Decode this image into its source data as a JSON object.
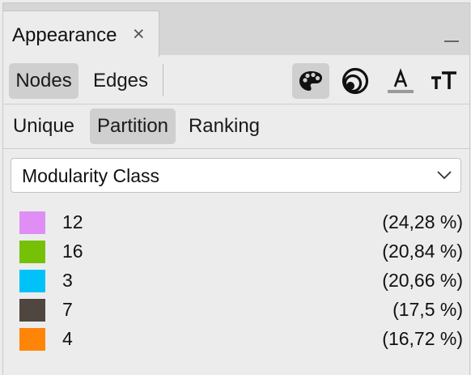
{
  "panel": {
    "tab_title": "Appearance",
    "close_glyph": "×"
  },
  "element_tabs": [
    {
      "label": "Nodes",
      "active": true
    },
    {
      "label": "Edges",
      "active": false
    }
  ],
  "attribute_icons": [
    {
      "name": "palette-icon",
      "meaning": "color",
      "active": true
    },
    {
      "name": "size-icon",
      "meaning": "size",
      "active": false
    },
    {
      "name": "label-color-icon",
      "meaning": "label color",
      "glyph": "A",
      "active": false
    },
    {
      "name": "label-size-icon",
      "meaning": "label size",
      "glyph": "тT",
      "active": false
    }
  ],
  "mode_tabs": [
    {
      "label": "Unique",
      "active": false
    },
    {
      "label": "Partition",
      "active": true
    },
    {
      "label": "Ranking",
      "active": false
    }
  ],
  "attribute_select": {
    "selected": "Modularity Class"
  },
  "partitions": [
    {
      "label": "12",
      "percent": "(24,28 %)",
      "color": "#e08ef5"
    },
    {
      "label": "16",
      "percent": "(20,84 %)",
      "color": "#76c107"
    },
    {
      "label": "3",
      "percent": "(20,66 %)",
      "color": "#00c2f8"
    },
    {
      "label": "7",
      "percent": "(17,5 %)",
      "color": "#4e463f"
    },
    {
      "label": "4",
      "percent": "(16,72 %)",
      "color": "#ff8508"
    }
  ]
}
